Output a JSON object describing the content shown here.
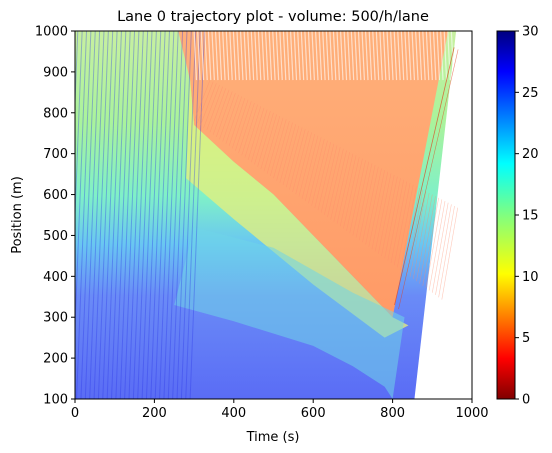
{
  "chart_data": {
    "type": "heatmap",
    "title": "Lane 0 trajectory plot - volume: 500/h/lane",
    "xlabel": "Time (s)",
    "ylabel": "Position (m)",
    "xlim": [
      0,
      1000
    ],
    "ylim": [
      100,
      1000
    ],
    "x_ticks": [
      "0",
      "200",
      "400",
      "600",
      "800",
      "1000"
    ],
    "y_ticks": [
      "100",
      "200",
      "300",
      "400",
      "500",
      "600",
      "700",
      "800",
      "900",
      "1000"
    ],
    "colorbar": {
      "label": "",
      "colormap": "jet_r",
      "range": [
        0,
        30
      ],
      "ticks": [
        "0",
        "5",
        "10",
        "15",
        "20",
        "25",
        "30"
      ]
    },
    "congestion_wave": {
      "description_values_speed_mps": 5,
      "upper_front": [
        [
          290,
          880
        ],
        [
          300,
          770
        ],
        [
          400,
          680
        ],
        [
          500,
          600
        ],
        [
          600,
          500
        ],
        [
          700,
          400
        ],
        [
          760,
          340
        ],
        [
          800,
          300
        ]
      ],
      "lower_front": [
        [
          250,
          330
        ],
        [
          400,
          290
        ],
        [
          600,
          230
        ],
        [
          700,
          180
        ],
        [
          780,
          130
        ],
        [
          800,
          100
        ]
      ],
      "free_flow_speed_mps": 25,
      "end_of_data_time": 960
    }
  }
}
